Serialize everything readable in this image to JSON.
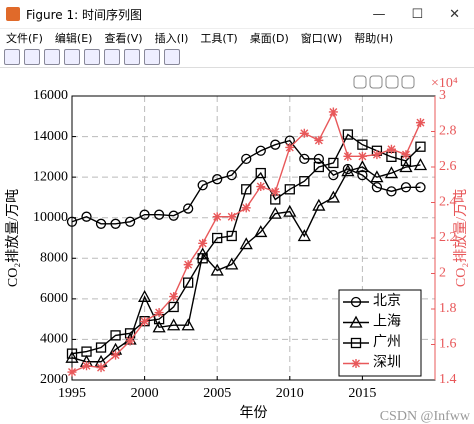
{
  "window_title": "Figure 1: 时间序列图",
  "menu": [
    "文件(F)",
    "编辑(E)",
    "查看(V)",
    "插入(I)",
    "工具(T)",
    "桌面(D)",
    "窗口(W)",
    "帮助(H)"
  ],
  "watermark": "CSDN @Infww",
  "chart_data": {
    "type": "line",
    "x_label": "年份",
    "y_label": "CO₂排放量/万吨",
    "y2_label": "CO₂排放量/万吨",
    "y2_exponent": "×10⁴",
    "x": [
      1995,
      1996,
      1997,
      1998,
      1999,
      2000,
      2001,
      2002,
      2003,
      2004,
      2005,
      2006,
      2007,
      2008,
      2009,
      2010,
      2011,
      2012,
      2013,
      2014,
      2015,
      2016,
      2017,
      2018,
      2019
    ],
    "xlim": [
      1995,
      2020
    ],
    "xticks": [
      1995,
      2000,
      2005,
      2010,
      2015
    ],
    "ylim": [
      2000,
      16000
    ],
    "yticks": [
      2000,
      4000,
      6000,
      8000,
      10000,
      12000,
      14000,
      16000
    ],
    "y2lim": [
      1.4,
      3
    ],
    "y2ticks": [
      1.4,
      1.6,
      1.8,
      2,
      2.2,
      2.4,
      2.6,
      2.8,
      3
    ],
    "y2color": "#e8585a",
    "grid": true,
    "legend_position": "lower right",
    "series": [
      {
        "name": "北京",
        "color": "#000000",
        "marker": "circle",
        "values": [
          9800,
          10050,
          9700,
          9700,
          9800,
          10150,
          10150,
          10100,
          10450,
          11600,
          11900,
          12100,
          12900,
          13300,
          13600,
          13800,
          12900,
          12900,
          12100,
          12400,
          12100,
          11500,
          11300,
          11500,
          11500
        ]
      },
      {
        "name": "上海",
        "color": "#000000",
        "marker": "triangle",
        "values": [
          3100,
          2900,
          2900,
          3500,
          4000,
          6100,
          4600,
          4700,
          4700,
          8200,
          7400,
          7700,
          8700,
          9300,
          10200,
          10300,
          9100,
          10600,
          11000,
          12300,
          12500,
          12000,
          12200,
          12500,
          12600
        ]
      },
      {
        "name": "广州",
        "color": "#000000",
        "marker": "square",
        "values": [
          3300,
          3400,
          3600,
          4200,
          4300,
          4900,
          5000,
          5600,
          6800,
          8000,
          9000,
          9100,
          11400,
          12200,
          10900,
          11400,
          11800,
          12500,
          12700,
          14100,
          13600,
          13300,
          13000,
          12800,
          13500
        ]
      },
      {
        "name": "深圳",
        "color": "#e8585a",
        "marker": "star",
        "axis": "y2",
        "values": [
          1.445,
          1.48,
          1.47,
          1.54,
          1.62,
          1.73,
          1.78,
          1.87,
          2.05,
          2.17,
          2.32,
          2.32,
          2.37,
          2.49,
          2.46,
          2.71,
          2.79,
          2.75,
          2.91,
          2.66,
          2.66,
          2.67,
          2.7,
          2.67,
          2.85
        ]
      }
    ]
  }
}
